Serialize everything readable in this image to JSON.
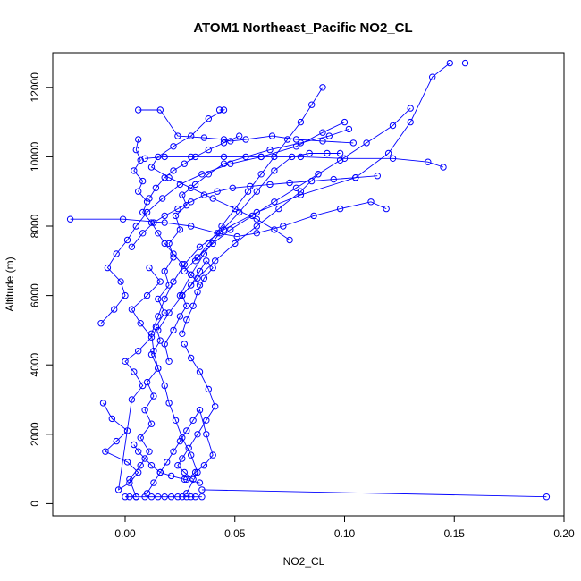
{
  "chart_data": {
    "type": "scatter",
    "title": "ATOM1 Northeast_Pacific NO2_CL",
    "xlabel": "NO2_CL",
    "ylabel": "Altitude (m)",
    "xlim": [
      -0.033,
      0.2
    ],
    "ylim": [
      -350,
      13000
    ],
    "xticks": [
      0.0,
      0.05,
      0.1,
      0.15,
      0.2
    ],
    "xtick_labels": [
      "0.00",
      "0.05",
      "0.10",
      "0.15",
      "0.20"
    ],
    "yticks": [
      0,
      2000,
      4000,
      6000,
      8000,
      10000,
      12000
    ],
    "ytick_labels": [
      "0",
      "2000",
      "4000",
      "6000",
      "8000",
      "10000",
      "12000"
    ],
    "color": "#0000ff",
    "marker": "open-circle",
    "connected": true,
    "grid": false,
    "series": [
      {
        "x": [
          0.0,
          0.002,
          0.005,
          0.009,
          0.012,
          0.015,
          0.018,
          0.021,
          0.024,
          0.026,
          0.028,
          0.03,
          0.032,
          0.035
        ],
        "y": [
          200,
          200,
          200,
          200,
          200,
          200,
          200,
          200,
          200,
          200,
          200,
          200,
          200,
          200
        ]
      },
      {
        "x": [
          0.035,
          0.192
        ],
        "y": [
          400,
          200
        ]
      },
      {
        "x": [
          0.005,
          0.002,
          0.007,
          0.011,
          0.007,
          0.012,
          0.009,
          0.013,
          0.01,
          0.015,
          0.012,
          0.016,
          0.014,
          0.018,
          0.015,
          0.02,
          0.018,
          0.022,
          0.02,
          0.025,
          0.023,
          0.028,
          0.026,
          0.032,
          0.038,
          0.045,
          0.055,
          0.066,
          0.08,
          0.093,
          0.102
        ],
        "y": [
          200,
          700,
          1100,
          1500,
          1900,
          2300,
          2700,
          3100,
          3500,
          3900,
          4300,
          4700,
          5100,
          5500,
          5900,
          6300,
          6700,
          7100,
          7500,
          7900,
          8300,
          8600,
          8900,
          9200,
          9500,
          9800,
          10000,
          10200,
          10400,
          10600,
          10800
        ]
      },
      {
        "x": [
          0.028,
          0.033,
          0.03,
          0.026,
          0.023,
          0.02,
          0.018,
          0.015,
          0.013,
          0.012,
          0.015,
          0.018,
          0.022,
          0.027,
          0.034,
          0.045,
          0.06,
          0.08,
          0.105,
          0.12,
          0.13,
          0.14,
          0.148,
          0.155
        ],
        "y": [
          300,
          900,
          1400,
          1900,
          2400,
          2900,
          3400,
          3900,
          4400,
          4900,
          5400,
          5900,
          6400,
          6900,
          7400,
          7900,
          8400,
          8900,
          9400,
          10100,
          11000,
          12300,
          12700,
          12700
        ]
      },
      {
        "x": [
          -0.01,
          -0.006,
          0.001,
          -0.004,
          -0.009,
          0.001,
          0.006,
          0.002,
          -0.003,
          0.003,
          0.008,
          0.004,
          0.0,
          0.006,
          0.012,
          0.007,
          0.003,
          0.01,
          0.016,
          0.011
        ],
        "y": [
          2900,
          2450,
          2100,
          1800,
          1500,
          1200,
          900,
          600,
          400,
          3000,
          3400,
          3800,
          4100,
          4400,
          4800,
          5200,
          5600,
          6000,
          6400,
          6800
        ]
      },
      {
        "x": [
          -0.011,
          -0.005,
          0.0,
          -0.002,
          -0.008,
          -0.004,
          0.001,
          0.005,
          0.01,
          0.017,
          0.025,
          0.035,
          0.048,
          0.062,
          0.078,
          0.09,
          0.1
        ],
        "y": [
          5200,
          5600,
          6000,
          6400,
          6800,
          7200,
          7600,
          8000,
          8400,
          8800,
          9200,
          9500,
          9800,
          10000,
          10300,
          10700,
          11000
        ]
      },
      {
        "x": [
          -0.025,
          -0.001,
          0.018,
          0.03,
          0.042,
          0.051,
          0.06,
          0.072,
          0.086,
          0.098,
          0.112,
          0.119
        ],
        "y": [
          8200,
          8200,
          8100,
          8000,
          7800,
          7700,
          7800,
          8000,
          8300,
          8500,
          8700,
          8500
        ]
      },
      {
        "x": [
          0.003,
          0.008,
          0.013,
          0.018,
          0.024,
          0.03,
          0.036,
          0.042,
          0.049,
          0.057,
          0.066,
          0.075,
          0.085,
          0.095,
          0.105,
          0.115
        ],
        "y": [
          7400,
          7800,
          8100,
          8300,
          8500,
          8700,
          8900,
          9000,
          9100,
          9150,
          9200,
          9250,
          9300,
          9350,
          9400,
          9450
        ]
      },
      {
        "x": [
          0.006,
          0.005,
          0.007,
          0.004,
          0.008,
          0.006,
          0.01,
          0.008,
          0.012,
          0.015,
          0.018,
          0.022,
          0.026,
          0.03,
          0.034
        ],
        "y": [
          10500,
          10200,
          9900,
          9600,
          9300,
          9000,
          8700,
          8400,
          8100,
          7800,
          7500,
          7200,
          6900,
          6600,
          6300
        ]
      },
      {
        "x": [
          0.009,
          0.018,
          0.03,
          0.045,
          0.062,
          0.08,
          0.1,
          0.122,
          0.138,
          0.145
        ],
        "y": [
          9950,
          10000,
          10000,
          10000,
          10000,
          10000,
          9950,
          9950,
          9850,
          9700
        ]
      },
      {
        "x": [
          0.006,
          0.016,
          0.024,
          0.036,
          0.045,
          0.048,
          0.055,
          0.067,
          0.078,
          0.09,
          0.104
        ],
        "y": [
          11350,
          11350,
          10600,
          10550,
          10500,
          10450,
          10500,
          10600,
          10500,
          10450,
          10400
        ]
      },
      {
        "x": [
          0.043,
          0.045,
          0.038,
          0.03,
          0.022,
          0.015,
          0.012,
          0.02,
          0.03,
          0.04,
          0.05,
          0.06,
          0.068,
          0.075
        ],
        "y": [
          11350,
          11350,
          11100,
          10600,
          10300,
          10000,
          9700,
          9400,
          9100,
          8800,
          8500,
          8200,
          7900,
          7600
        ]
      },
      {
        "x": [
          0.02,
          0.018,
          0.022,
          0.025,
          0.028,
          0.026,
          0.03,
          0.034,
          0.037,
          0.04,
          0.036,
          0.033,
          0.031,
          0.028,
          0.026
        ],
        "y": [
          4100,
          4600,
          5000,
          5400,
          5700,
          6000,
          6300,
          6700,
          7000,
          6800,
          6500,
          6100,
          5700,
          5300,
          4900
        ]
      },
      {
        "x": [
          0.027,
          0.03,
          0.034,
          0.038,
          0.041,
          0.037,
          0.033,
          0.029,
          0.026,
          0.024,
          0.027,
          0.031
        ],
        "y": [
          4600,
          4200,
          3800,
          3300,
          2800,
          2400,
          2000,
          1600,
          1300,
          1100,
          900,
          700
        ]
      },
      {
        "x": [
          0.01,
          0.013,
          0.016,
          0.019,
          0.022,
          0.025,
          0.028,
          0.031,
          0.034,
          0.037,
          0.04,
          0.036,
          0.032,
          0.028
        ],
        "y": [
          300,
          600,
          900,
          1200,
          1500,
          1800,
          2100,
          2400,
          2700,
          2000,
          1400,
          1100,
          900,
          700
        ]
      },
      {
        "x": [
          0.13,
          0.122,
          0.11,
          0.098,
          0.088,
          0.078,
          0.068,
          0.058,
          0.048,
          0.04,
          0.033,
          0.027
        ],
        "y": [
          11400,
          10900,
          10400,
          9900,
          9500,
          9100,
          8700,
          8300,
          7900,
          7500,
          7100,
          6700
        ]
      },
      {
        "x": [
          0.09,
          0.085,
          0.08,
          0.074,
          0.068,
          0.062,
          0.056,
          0.05,
          0.044,
          0.038,
          0.032
        ],
        "y": [
          12000,
          11500,
          11000,
          10500,
          10000,
          9500,
          9000,
          8500,
          8000,
          7500,
          7000
        ]
      },
      {
        "x": [
          0.015,
          0.02,
          0.026,
          0.033,
          0.041,
          0.05,
          0.06,
          0.07,
          0.08,
          0.088
        ],
        "y": [
          5000,
          5500,
          6000,
          6500,
          7000,
          7500,
          8000,
          8500,
          9000,
          9500
        ]
      },
      {
        "x": [
          0.025,
          0.03,
          0.036,
          0.043,
          0.052,
          0.06,
          0.068,
          0.076,
          0.084,
          0.092,
          0.098
        ],
        "y": [
          6000,
          6600,
          7200,
          7800,
          8400,
          9000,
          9600,
          10000,
          10100,
          10100,
          10100
        ]
      },
      {
        "x": [
          0.011,
          0.014,
          0.018,
          0.022,
          0.027,
          0.032,
          0.038,
          0.045,
          0.052
        ],
        "y": [
          8800,
          9100,
          9400,
          9600,
          9800,
          10000,
          10200,
          10400,
          10600
        ]
      },
      {
        "x": [
          0.004,
          0.006,
          0.009,
          0.012,
          0.016,
          0.021,
          0.027,
          0.034
        ],
        "y": [
          1700,
          1500,
          1300,
          1100,
          900,
          800,
          700,
          600
        ]
      }
    ]
  }
}
